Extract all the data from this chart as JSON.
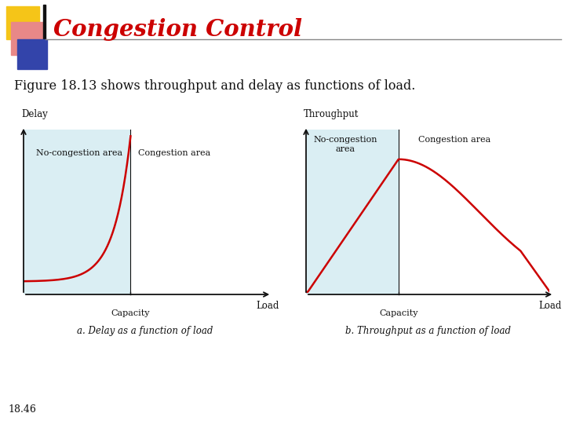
{
  "title": "Congestion Control",
  "subtitle": "Figure 18.13 shows throughput and delay as functions of load.",
  "footer": "18.46",
  "bg_color": "#ffffff",
  "light_blue": "#daeef3",
  "curve_color": "#cc0000",
  "axis_color": "#111111",
  "text_color": "#111111",
  "header_text_color": "#cc0000",
  "panel_a_ylabel": "Delay",
  "panel_b_ylabel": "Throughput",
  "xlabel": "Load",
  "capacity_label": "Capacity",
  "panel_a_no_cong": "No-congestion area",
  "panel_a_cong": "Congestion area",
  "panel_b_no_cong": "No-congestion\narea",
  "panel_b_cong": "Congestion area",
  "panel_a_caption": "a. Delay as a function of load",
  "panel_b_caption": "b. Throughput as a function of load",
  "sq_yellow": "#f5c518",
  "sq_red": "#cc2222",
  "sq_pink": "#e88888",
  "sq_blue": "#3344aa"
}
